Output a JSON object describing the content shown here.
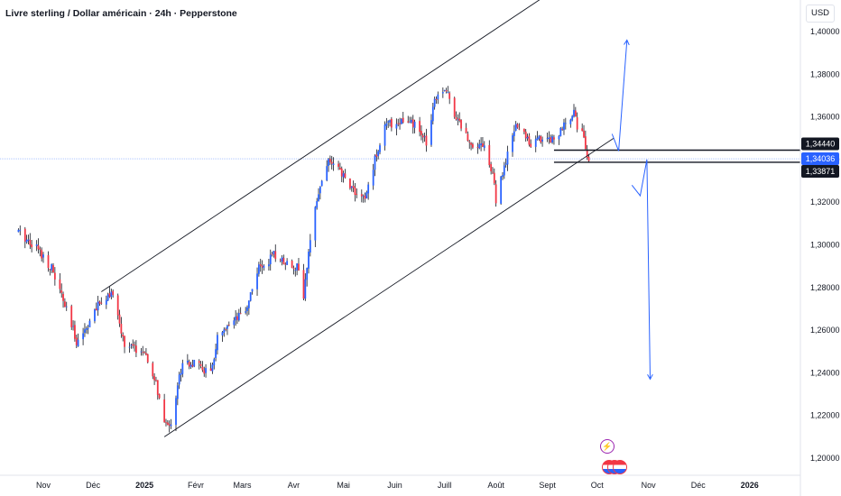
{
  "header": {
    "title": "Livre sterling / Dollar américain · 24h · Pepperstone",
    "currency": "USD"
  },
  "icons": [
    "lightning-icon",
    "us-flag-icon"
  ],
  "colors": {
    "bull": "#131722",
    "bear": "#f23645",
    "bull_body": "#2962ff",
    "projection": "#2962ff",
    "channel": "#131722",
    "current_price_line": "#2962ff"
  },
  "chart_data": {
    "type": "candlestick",
    "title": "Livre sterling / Dollar américain · 24h · Pepperstone",
    "xlabel": "",
    "ylabel": "",
    "y_unit": "USD",
    "ylim": [
      1.195,
      1.41
    ],
    "x_ticks": [
      "Nov",
      "Déc",
      "2025",
      "Févr",
      "Mars",
      "Avr",
      "Mai",
      "Juin",
      "Juill",
      "Août",
      "Sept",
      "Oct",
      "Nov",
      "Déc",
      "2026"
    ],
    "y_ticks": [
      "1,40000",
      "1,38000",
      "1,36000",
      "1,34000",
      "1,32000",
      "1,30000",
      "1,28000",
      "1,26000",
      "1,24000",
      "1,22000",
      "1,20000"
    ],
    "price_labels": [
      {
        "text": "1,34440",
        "value": 1.3444,
        "style": "dark"
      },
      {
        "text": "1,34036",
        "value": 1.34036,
        "style": "blue"
      },
      {
        "text": "1,33871",
        "value": 1.33871,
        "style": "dark"
      }
    ],
    "close_path": [
      [
        "2024-10-17",
        1.306
      ],
      [
        "2024-10-28",
        1.299
      ],
      [
        "2024-11-06",
        1.289
      ],
      [
        "2024-11-12",
        1.276
      ],
      [
        "2024-11-21",
        1.255
      ],
      [
        "2024-11-26",
        1.26
      ],
      [
        "2024-12-06",
        1.274
      ],
      [
        "2024-12-12",
        1.278
      ],
      [
        "2024-12-20",
        1.253
      ],
      [
        "2024-12-31",
        1.25
      ],
      [
        "2025-01-08",
        1.235
      ],
      [
        "2025-01-13",
        1.215
      ],
      [
        "2025-01-17",
        1.217
      ],
      [
        "2025-01-24",
        1.246
      ],
      [
        "2025-02-03",
        1.243
      ],
      [
        "2025-02-10",
        1.239
      ],
      [
        "2025-02-14",
        1.256
      ],
      [
        "2025-02-21",
        1.261
      ],
      [
        "2025-03-03",
        1.269
      ],
      [
        "2025-03-10",
        1.288
      ],
      [
        "2025-03-20",
        1.295
      ],
      [
        "2025-03-28",
        1.292
      ],
      [
        "2025-04-04",
        1.289
      ],
      [
        "2025-04-07",
        1.276
      ],
      [
        "2025-04-14",
        1.32
      ],
      [
        "2025-04-22",
        1.34
      ],
      [
        "2025-04-30",
        1.333
      ],
      [
        "2025-05-09",
        1.324
      ],
      [
        "2025-05-14",
        1.321
      ],
      [
        "2025-05-20",
        1.34
      ],
      [
        "2025-05-26",
        1.356
      ],
      [
        "2025-06-05",
        1.358
      ],
      [
        "2025-06-13",
        1.356
      ],
      [
        "2025-06-20",
        1.348
      ],
      [
        "2025-06-25",
        1.369
      ],
      [
        "2025-07-01",
        1.374
      ],
      [
        "2025-07-07",
        1.362
      ],
      [
        "2025-07-16",
        1.348
      ],
      [
        "2025-07-25",
        1.347
      ],
      [
        "2025-07-31",
        1.329
      ],
      [
        "2025-08-01",
        1.321
      ],
      [
        "2025-08-07",
        1.339
      ],
      [
        "2025-08-13",
        1.356
      ],
      [
        "2025-08-22",
        1.348
      ],
      [
        "2025-08-29",
        1.35
      ],
      [
        "2025-09-05",
        1.35
      ],
      [
        "2025-09-12",
        1.356
      ],
      [
        "2025-09-17",
        1.364
      ],
      [
        "2025-09-19",
        1.355
      ],
      [
        "2025-09-23",
        1.352
      ],
      [
        "2025-09-25",
        1.339
      ],
      [
        "2025-09-26",
        1.33871
      ]
    ],
    "channel_lines": [
      {
        "from": [
          "2024-12-06",
          1.278
        ],
        "to": [
          "2025-10-07",
          1.436
        ]
      },
      {
        "from": [
          "2025-01-13",
          1.21
        ],
        "to": [
          "2025-10-11",
          1.35
        ]
      }
    ],
    "horizontal_levels": [
      1.3444,
      1.3387
    ],
    "current_price": 1.34036,
    "projection_up": [
      [
        "2025-10-10",
        1.352
      ],
      [
        "2025-10-14",
        1.344
      ],
      [
        "2025-10-19",
        1.396
      ]
    ],
    "projection_down": [
      [
        "2025-10-22",
        1.328
      ],
      [
        "2025-10-27",
        1.323
      ],
      [
        "2025-10-31",
        1.34
      ],
      [
        "2025-11-02",
        1.237
      ]
    ],
    "grid": false,
    "legend": "none"
  }
}
